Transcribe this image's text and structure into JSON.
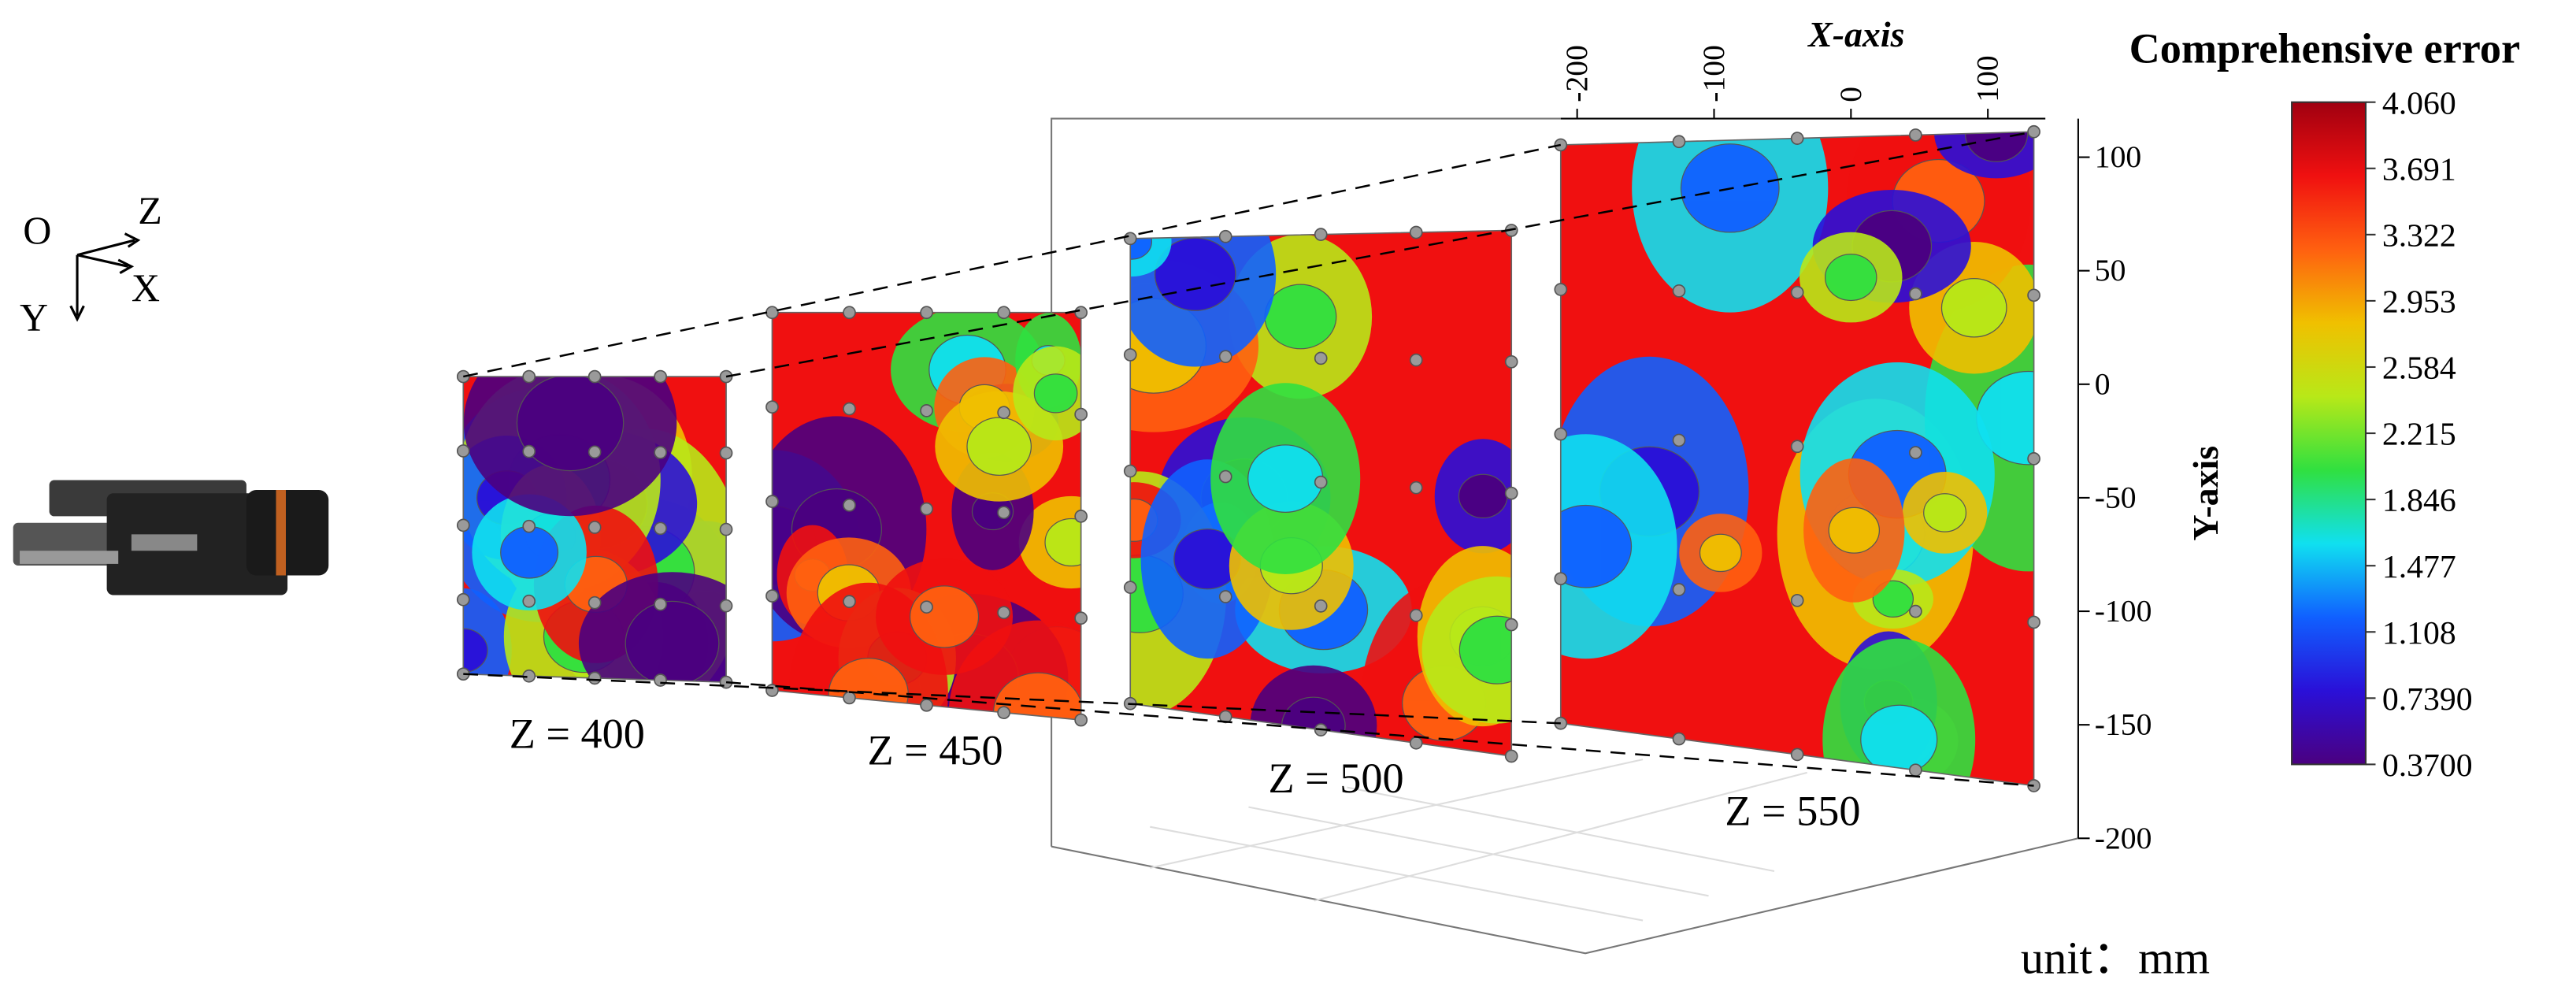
{
  "chart_data": {
    "type": "contour3d",
    "colorbar": {
      "title": "Comprehensive error",
      "lim": [
        0.37,
        4.06
      ],
      "ticks": [
        {
          "value": 4.06,
          "label": "4.060"
        },
        3.691,
        3.322,
        2.953,
        2.584,
        2.215,
        1.846,
        1.477,
        1.108,
        {
          "value": 0.739,
          "label": "0.7390"
        },
        {
          "value": 0.37,
          "label": "0.3700"
        }
      ],
      "colors": [
        "#4b0080",
        "#2a10d8",
        "#1060ff",
        "#10e0f0",
        "#30e040",
        "#b8e818",
        "#f0c000",
        "#ff6010",
        "#f01010",
        "#a00010"
      ]
    },
    "x_label": "X-axis",
    "xlim": [
      -212,
      142
    ],
    "xticks": [
      -200,
      -100,
      0,
      100
    ],
    "y_label": "Y-axis",
    "ylim": [
      -200,
      117
    ],
    "yticks": [
      100,
      50,
      0,
      -50,
      -100,
      -150,
      -200
    ],
    "planes": [
      "Z = 400",
      "Z = 450",
      "Z = 500",
      "Z = 550"
    ],
    "orientation": {
      "origin": "O",
      "z": "Z",
      "x": "X",
      "y": "Y"
    },
    "unit": "unit：mm"
  }
}
